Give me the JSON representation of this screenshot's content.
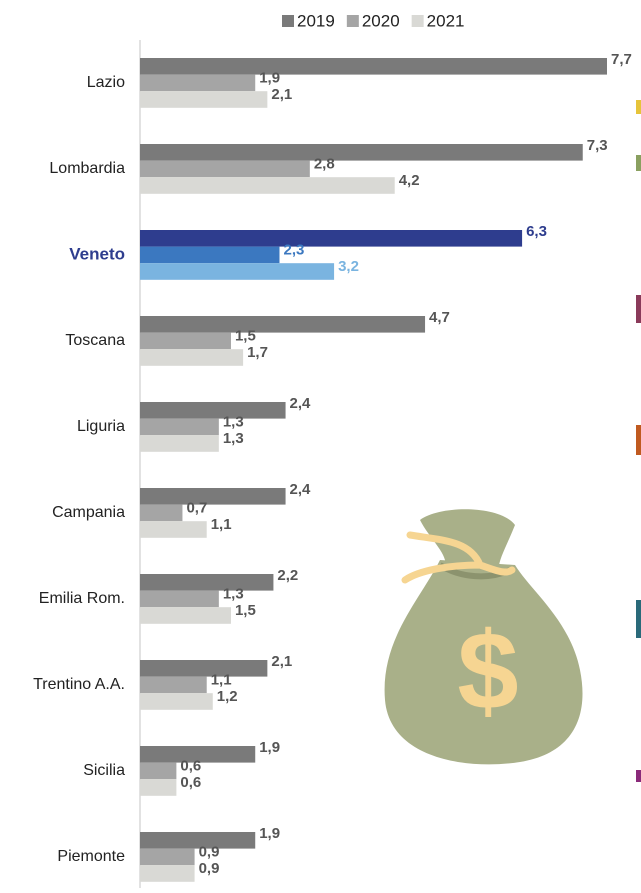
{
  "chart_data": {
    "type": "hbar",
    "categories": [
      "Lazio",
      "Lombardia",
      "Veneto",
      "Toscana",
      "Liguria",
      "Campania",
      "Emilia Rom.",
      "Trentino A.A.",
      "Sicilia",
      "Piemonte"
    ],
    "highlight": 2,
    "highlight_label_color": "#2e3d8e",
    "legend": "top",
    "series": [
      {
        "name": "2019",
        "color": "#7a7a7a",
        "highlight_color": "#2e3d8e",
        "values": [
          7.7,
          7.3,
          6.3,
          4.7,
          2.4,
          2.4,
          2.2,
          2.1,
          1.9,
          1.9
        ],
        "value_labels": [
          "7,7",
          "7,3",
          "6,3",
          "4,7",
          "2,4",
          "2,4",
          "2,2",
          "2,1",
          "1,9",
          "1,9"
        ]
      },
      {
        "name": "2020",
        "color": "#a5a5a5",
        "highlight_color": "#3b78c0",
        "values": [
          1.9,
          2.8,
          2.3,
          1.5,
          1.3,
          0.7,
          1.3,
          1.1,
          0.6,
          0.9
        ],
        "value_labels": [
          "1,9",
          "2,8",
          "2,3",
          "1,5",
          "1,3",
          "0,7",
          "1,3",
          "1,1",
          "0,6",
          "0,9"
        ]
      },
      {
        "name": "2021",
        "color": "#d9d9d5",
        "highlight_color": "#7ab4e0",
        "values": [
          2.1,
          4.2,
          3.2,
          1.7,
          1.3,
          1.1,
          1.5,
          1.2,
          0.6,
          0.9
        ],
        "value_labels": [
          "2,1",
          "4,2",
          "3,2",
          "1,7",
          "1,3",
          "1,1",
          "1,5",
          "1,2",
          "0,6",
          "0,9"
        ]
      }
    ]
  }
}
